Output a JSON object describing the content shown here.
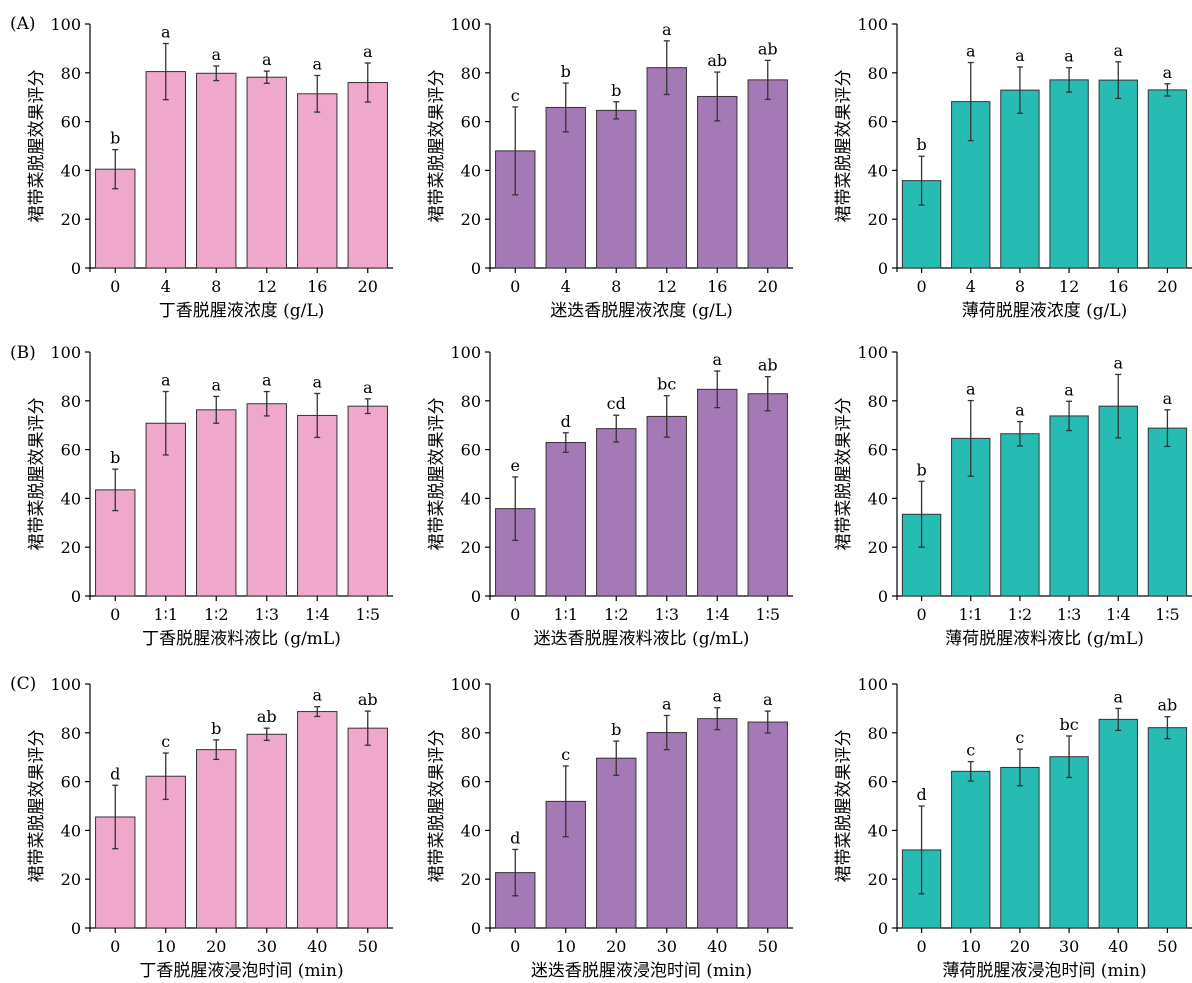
{
  "panel_labels": [
    "(A)",
    "(B)",
    "(C)"
  ],
  "colors": {
    "clove": "#efa8cb",
    "rosemary": "#a479b5",
    "mint": "#27bcb3",
    "axis": "#000000"
  },
  "chart_data": [
    {
      "type": "bar",
      "row": 0,
      "col": 0,
      "color_key": "clove",
      "xlabel": "丁香脱腥液浓度 (g/L)",
      "ylabel": "裙带菜脱腥效果评分",
      "ylim": [
        0,
        100
      ],
      "yticks": [
        0,
        20,
        40,
        60,
        80,
        100
      ],
      "categories": [
        "0",
        "4",
        "8",
        "12",
        "16",
        "20"
      ],
      "values": [
        40.5,
        80.5,
        79.8,
        78.2,
        71.4,
        76.0
      ],
      "errors": [
        8,
        11.5,
        3,
        2.5,
        7.5,
        8
      ],
      "labels": [
        "b",
        "a",
        "a",
        "a",
        "a",
        "a"
      ]
    },
    {
      "type": "bar",
      "row": 0,
      "col": 1,
      "color_key": "rosemary",
      "xlabel": "迷迭香脱腥液浓度 (g/L)",
      "ylabel": "裙带菜脱腥效果评分",
      "ylim": [
        0,
        100
      ],
      "yticks": [
        0,
        20,
        40,
        60,
        80,
        100
      ],
      "categories": [
        "0",
        "4",
        "8",
        "12",
        "16",
        "20"
      ],
      "values": [
        48,
        65.8,
        64.6,
        82.1,
        70.3,
        77.1
      ],
      "errors": [
        18,
        10,
        3.5,
        11,
        10,
        8
      ],
      "labels": [
        "c",
        "b",
        "b",
        "a",
        "ab",
        "ab"
      ]
    },
    {
      "type": "bar",
      "row": 0,
      "col": 2,
      "color_key": "mint",
      "xlabel": "薄荷脱腥液浓度 (g/L)",
      "ylabel": "裙带菜脱腥效果评分",
      "ylim": [
        0,
        100
      ],
      "yticks": [
        0,
        20,
        40,
        60,
        80,
        100
      ],
      "categories": [
        "0",
        "4",
        "8",
        "12",
        "16",
        "20"
      ],
      "values": [
        35.8,
        68.2,
        72.9,
        77.1,
        77.0,
        73.0
      ],
      "errors": [
        10,
        16,
        9.5,
        5,
        7.5,
        2.5
      ],
      "labels": [
        "b",
        "a",
        "a",
        "a",
        "a",
        "a"
      ]
    },
    {
      "type": "bar",
      "row": 1,
      "col": 0,
      "color_key": "clove",
      "xlabel": "丁香脱腥液料液比 (g/mL)",
      "ylabel": "裙带菜脱腥效果评分",
      "ylim": [
        0,
        100
      ],
      "yticks": [
        0,
        20,
        40,
        60,
        80,
        100
      ],
      "categories": [
        "0",
        "1∶1",
        "1∶2",
        "1∶3",
        "1∶4",
        "1∶5"
      ],
      "values": [
        43.5,
        70.8,
        76.3,
        78.8,
        74.0,
        77.8
      ],
      "errors": [
        8.5,
        13,
        5.5,
        5,
        9,
        3
      ],
      "labels": [
        "b",
        "a",
        "a",
        "a",
        "a",
        "a"
      ]
    },
    {
      "type": "bar",
      "row": 1,
      "col": 1,
      "color_key": "rosemary",
      "xlabel": "迷迭香脱腥液料液比 (g/mL)",
      "ylabel": "裙带菜脱腥效果评分",
      "ylim": [
        0,
        100
      ],
      "yticks": [
        0,
        20,
        40,
        60,
        80,
        100
      ],
      "categories": [
        "0",
        "1∶1",
        "1∶2",
        "1∶3",
        "1∶4",
        "1∶5"
      ],
      "values": [
        35.8,
        62.9,
        68.6,
        73.6,
        84.7,
        82.9
      ],
      "errors": [
        13,
        4,
        5.5,
        8.5,
        7.5,
        7
      ],
      "labels": [
        "e",
        "d",
        "cd",
        "bc",
        "a",
        "ab"
      ]
    },
    {
      "type": "bar",
      "row": 1,
      "col": 2,
      "color_key": "mint",
      "xlabel": "薄荷脱腥液料液比 (g/mL)",
      "ylabel": "裙带菜脱腥效果评分",
      "ylim": [
        0,
        100
      ],
      "yticks": [
        0,
        20,
        40,
        60,
        80,
        100
      ],
      "categories": [
        "0",
        "1∶1",
        "1∶2",
        "1∶3",
        "1∶4",
        "1∶5"
      ],
      "values": [
        33.5,
        64.6,
        66.5,
        73.8,
        77.8,
        68.8
      ],
      "errors": [
        13.5,
        15.5,
        5,
        6,
        13,
        7.5
      ],
      "labels": [
        "b",
        "a",
        "a",
        "a",
        "a",
        "a"
      ]
    },
    {
      "type": "bar",
      "row": 2,
      "col": 0,
      "color_key": "clove",
      "xlabel": "丁香脱腥液浸泡时间 (min)",
      "ylabel": "裙带菜脱腥效果评分",
      "ylim": [
        0,
        100
      ],
      "yticks": [
        0,
        20,
        40,
        60,
        80,
        100
      ],
      "categories": [
        "0",
        "10",
        "20",
        "30",
        "40",
        "50"
      ],
      "values": [
        45.5,
        62.2,
        73.1,
        79.4,
        88.7,
        81.9
      ],
      "errors": [
        13,
        9.5,
        4,
        2.5,
        2,
        7
      ],
      "labels": [
        "d",
        "c",
        "b",
        "ab",
        "a",
        "ab"
      ]
    },
    {
      "type": "bar",
      "row": 2,
      "col": 1,
      "color_key": "rosemary",
      "xlabel": "迷迭香脱腥液浸泡时间 (min)",
      "ylabel": "裙带菜脱腥效果评分",
      "ylim": [
        0,
        100
      ],
      "yticks": [
        0,
        20,
        40,
        60,
        80,
        100
      ],
      "categories": [
        "0",
        "10",
        "20",
        "30",
        "40",
        "50"
      ],
      "values": [
        22.7,
        51.9,
        69.6,
        80.1,
        85.8,
        84.4
      ],
      "errors": [
        9.5,
        14.5,
        7,
        7,
        4.5,
        4.5
      ],
      "labels": [
        "d",
        "c",
        "b",
        "a",
        "a",
        "a"
      ]
    },
    {
      "type": "bar",
      "row": 2,
      "col": 2,
      "color_key": "mint",
      "xlabel": "薄荷脱腥液浸泡时间 (min)",
      "ylabel": "裙带菜脱腥效果评分",
      "ylim": [
        0,
        100
      ],
      "yticks": [
        0,
        20,
        40,
        60,
        80,
        100
      ],
      "categories": [
        "0",
        "10",
        "20",
        "30",
        "40",
        "50"
      ],
      "values": [
        32,
        64.2,
        65.8,
        70.2,
        85.5,
        82.1
      ],
      "errors": [
        18,
        4,
        7.5,
        8.5,
        4.5,
        4.5
      ],
      "labels": [
        "d",
        "c",
        "c",
        "bc",
        "a",
        "ab"
      ]
    }
  ]
}
